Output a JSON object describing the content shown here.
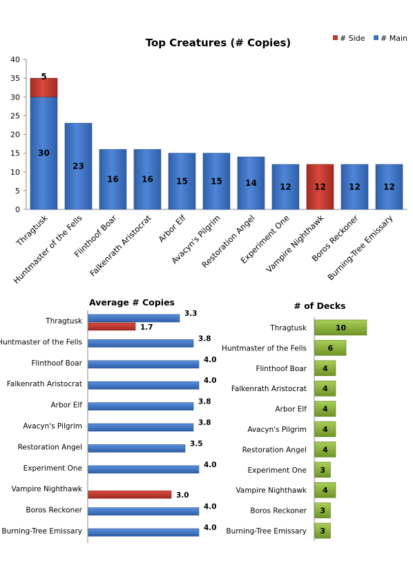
{
  "chart_data": [
    {
      "type": "bar",
      "stacked": true,
      "title": "Top Creatures (# Copies)",
      "categories": [
        "Thragtusk",
        "Huntmaster of the Fells",
        "Flinthoof Boar",
        "Falkenrath Aristocrat",
        "Arbor Elf",
        "Avacyn's Pilgrim",
        "Restoration Angel",
        "Experiment One",
        "Vampire Nighthawk",
        "Boros Reckoner",
        "Burning-Tree Emissary"
      ],
      "series": [
        {
          "name": "# Main",
          "color": "#3d73c4",
          "values": [
            30,
            23,
            16,
            16,
            15,
            15,
            14,
            12,
            0,
            12,
            12
          ]
        },
        {
          "name": "# Side",
          "color": "#c0392f",
          "values": [
            5,
            0,
            0,
            0,
            0,
            0,
            0,
            0,
            12,
            0,
            0
          ]
        }
      ],
      "ylim": [
        0,
        40
      ],
      "yticks": [
        "0",
        "5",
        "10",
        "15",
        "20",
        "25",
        "30",
        "35",
        "40"
      ],
      "grid": false,
      "legend": "top-right"
    },
    {
      "type": "bar",
      "orientation": "horizontal",
      "title": "Average # Copies",
      "categories": [
        "Thragtusk",
        "Huntmaster of the Fells",
        "Flinthoof Boar",
        "Falkenrath Aristocrat",
        "Arbor Elf",
        "Avacyn's Pilgrim",
        "Restoration Angel",
        "Experiment One",
        "Vampire Nighthawk",
        "Boros Reckoner",
        "Burning-Tree Emissary"
      ],
      "series": [
        {
          "color": "#3d73c4",
          "values": [
            3.3,
            3.8,
            4.0,
            4.0,
            3.8,
            3.8,
            3.5,
            4.0,
            null,
            4.0,
            4.0
          ],
          "labels": [
            "3.3",
            "3.8",
            "4.0",
            "4.0",
            "3.8",
            "3.8",
            "3.5",
            "4.0",
            "",
            "4.0",
            "4.0"
          ]
        },
        {
          "color": "#c0392f",
          "values": [
            1.7,
            null,
            null,
            null,
            null,
            null,
            null,
            null,
            3.0,
            null,
            null
          ],
          "labels": [
            "1.7",
            "",
            "",
            "",
            "",
            "",
            "",
            "",
            "3.0",
            "",
            ""
          ]
        }
      ],
      "xlim": [
        0,
        4.0
      ]
    },
    {
      "type": "bar",
      "orientation": "horizontal",
      "title": "# of Decks",
      "categories": [
        "Thragtusk",
        "Huntmaster of the Fells",
        "Flinthoof Boar",
        "Falkenrath Aristocrat",
        "Arbor Elf",
        "Avacyn's Pilgrim",
        "Restoration Angel",
        "Experiment One",
        "Vampire Nighthawk",
        "Boros Reckoner",
        "Burning-Tree Emissary"
      ],
      "series": [
        {
          "color": "#8cb33a",
          "values": [
            10,
            6,
            4,
            4,
            4,
            4,
            4,
            3,
            4,
            3,
            3
          ]
        }
      ],
      "xlim": [
        0,
        10
      ]
    }
  ]
}
